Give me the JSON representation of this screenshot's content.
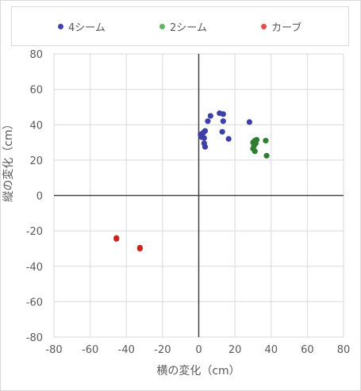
{
  "chart_data": {
    "type": "scatter",
    "title": "",
    "xlabel": "横の変化（cm）",
    "ylabel": "縦の変化（cm）",
    "xlim": [
      -80,
      80
    ],
    "ylim": [
      -80,
      80
    ],
    "xticks": [
      -80,
      -60,
      -40,
      -20,
      0,
      20,
      40,
      60,
      80
    ],
    "yticks": [
      -80,
      -60,
      -40,
      -20,
      0,
      20,
      40,
      60,
      80
    ],
    "grid": true,
    "legend_position": "top",
    "series": [
      {
        "name": "4シーム",
        "color": "#3f3fa8",
        "points": [
          [
            1.0,
            34.5
          ],
          [
            1.5,
            33.0
          ],
          [
            2.5,
            35.5
          ],
          [
            3.5,
            36.5
          ],
          [
            3.0,
            32.5
          ],
          [
            3.0,
            29.5
          ],
          [
            3.5,
            27.5
          ],
          [
            5.0,
            42.0
          ],
          [
            6.5,
            45.0
          ],
          [
            11.5,
            46.5
          ],
          [
            13.5,
            46.0
          ],
          [
            13.5,
            42.0
          ],
          [
            13.0,
            36.0
          ],
          [
            16.5,
            32.0
          ],
          [
            28.0,
            41.5
          ]
        ]
      },
      {
        "name": "2シーム",
        "color": "#2e7d32",
        "points": [
          [
            30.0,
            30.0
          ],
          [
            31.0,
            31.0
          ],
          [
            32.0,
            31.5
          ],
          [
            31.5,
            29.5
          ],
          [
            30.5,
            28.0
          ],
          [
            30.0,
            26.5
          ],
          [
            31.0,
            25.0
          ],
          [
            37.0,
            31.0
          ],
          [
            37.5,
            22.5
          ]
        ]
      },
      {
        "name": "カーブ",
        "color": "#d0211c",
        "points": [
          [
            -45.5,
            -24.5
          ],
          [
            -45.5,
            -24.0
          ],
          [
            -32.5,
            -30.0
          ],
          [
            -32.5,
            -29.5
          ]
        ]
      }
    ],
    "legend": [
      {
        "label": "4シーム",
        "color": "#4040b0"
      },
      {
        "label": "2シーム",
        "color": "#5cb85c"
      },
      {
        "label": "カーブ",
        "color": "#e84a4a"
      }
    ]
  }
}
